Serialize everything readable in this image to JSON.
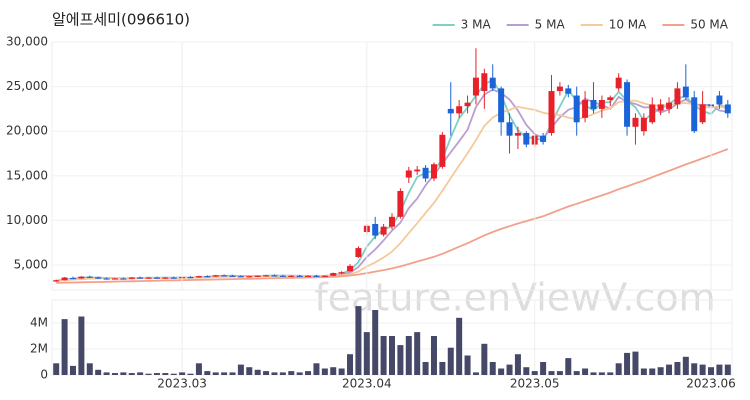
{
  "watermark": "feature.enViewV.com",
  "chart_data": [
    {
      "type": "candlestick",
      "title": "알에프세미(096610)",
      "up_color": "#e8202a",
      "down_color": "#1a63d8",
      "open": [
        3150,
        3300,
        3550,
        3500,
        3700,
        3600,
        3500,
        3450,
        3500,
        3450,
        3600,
        3550,
        3600,
        3550,
        3600,
        3550,
        3650,
        3600,
        3750,
        3700,
        3850,
        3800,
        3750,
        3700,
        3750,
        3800,
        3850,
        3800,
        3750,
        3800,
        3750,
        3800,
        3750,
        3800,
        4100,
        4300,
        5900,
        8700,
        9600,
        8400,
        9300,
        10400,
        14800,
        15500,
        15900,
        14700,
        16000,
        22500,
        22000,
        22800,
        24000,
        24500,
        26000,
        24800,
        21000,
        19500,
        19800,
        18500,
        19500,
        19800,
        24500,
        24800,
        24000,
        21500,
        23500,
        22500,
        23500,
        24800,
        25500,
        20500,
        20000,
        21000,
        22300,
        22500,
        23000,
        25000,
        23800,
        21000,
        23000,
        24000,
        23000
      ],
      "high": [
        3350,
        3650,
        3700,
        3750,
        3800,
        3700,
        3600,
        3550,
        3600,
        3650,
        3700,
        3650,
        3700,
        3650,
        3700,
        3700,
        3750,
        3800,
        3850,
        3900,
        3950,
        3900,
        3850,
        3800,
        3850,
        3900,
        3950,
        3900,
        3850,
        3900,
        3850,
        3900,
        3850,
        4150,
        4300,
        5100,
        7100,
        9600,
        10400,
        9600,
        10800,
        13600,
        16000,
        16100,
        16200,
        16500,
        19900,
        25500,
        23500,
        24000,
        29300,
        27000,
        27500,
        25000,
        22000,
        20500,
        20000,
        19800,
        19800,
        26300,
        25500,
        25200,
        25000,
        24500,
        25500,
        24000,
        24000,
        26500,
        25800,
        22000,
        22000,
        23800,
        23600,
        23800,
        25500,
        27500,
        24500,
        24500,
        24000,
        24500,
        23500
      ],
      "low": [
        3100,
        3280,
        3450,
        3450,
        3550,
        3450,
        3400,
        3380,
        3400,
        3420,
        3500,
        3480,
        3520,
        3480,
        3520,
        3500,
        3580,
        3580,
        3650,
        3680,
        3750,
        3700,
        3650,
        3620,
        3680,
        3700,
        3750,
        3700,
        3680,
        3720,
        3700,
        3700,
        3680,
        3750,
        3950,
        4250,
        5800,
        8400,
        7900,
        8200,
        9000,
        10200,
        14200,
        15100,
        14300,
        14400,
        15800,
        19500,
        21500,
        22000,
        23000,
        22500,
        24500,
        19500,
        17500,
        18000,
        18200,
        18200,
        18500,
        19500,
        24000,
        23800,
        19500,
        21000,
        22000,
        21500,
        22800,
        24500,
        19500,
        18500,
        19500,
        20800,
        21800,
        22000,
        22500,
        23500,
        19800,
        20800,
        22000,
        22500,
        21500
      ],
      "close": [
        3300,
        3600,
        3500,
        3700,
        3600,
        3500,
        3450,
        3500,
        3450,
        3600,
        3550,
        3600,
        3550,
        3600,
        3550,
        3650,
        3600,
        3750,
        3700,
        3850,
        3800,
        3750,
        3700,
        3750,
        3800,
        3850,
        3800,
        3750,
        3800,
        3750,
        3800,
        3750,
        3800,
        4100,
        4200,
        4900,
        6900,
        9400,
        8300,
        9300,
        10400,
        13300,
        15600,
        15700,
        14700,
        16300,
        19600,
        22000,
        22800,
        23200,
        26000,
        26500,
        24800,
        21000,
        19500,
        19800,
        18500,
        19500,
        18800,
        24500,
        25000,
        24200,
        21000,
        23500,
        22500,
        23500,
        23800,
        26000,
        20500,
        21500,
        21500,
        23000,
        23000,
        23200,
        24800,
        23800,
        20000,
        23000,
        22800,
        23000,
        22000
      ],
      "series": [
        {
          "name": "3 MA",
          "color": "#7ecfc4",
          "values": [
            3250,
            3400,
            3450,
            3600,
            3600,
            3600,
            3520,
            3480,
            3470,
            3520,
            3530,
            3580,
            3570,
            3580,
            3570,
            3600,
            3600,
            3670,
            3680,
            3770,
            3780,
            3800,
            3750,
            3730,
            3750,
            3800,
            3820,
            3800,
            3780,
            3770,
            3780,
            3770,
            3780,
            3880,
            4030,
            4400,
            5330,
            7070,
            8200,
            9000,
            9330,
            11000,
            13100,
            14870,
            15330,
            15570,
            16870,
            19300,
            21470,
            22670,
            24000,
            25230,
            25770,
            24100,
            21770,
            20100,
            19270,
            19270,
            18930,
            20930,
            22770,
            24570,
            23400,
            22900,
            22330,
            23170,
            23270,
            24430,
            23430,
            22670,
            21170,
            22000,
            22500,
            23070,
            23670,
            23930,
            22870,
            22270,
            21930,
            22930,
            22600
          ]
        },
        {
          "name": "5 MA",
          "color": "#b89fd0",
          "values": [
            3250,
            3350,
            3400,
            3500,
            3550,
            3580,
            3560,
            3550,
            3500,
            3500,
            3520,
            3540,
            3560,
            3570,
            3570,
            3590,
            3590,
            3630,
            3650,
            3710,
            3740,
            3770,
            3780,
            3770,
            3760,
            3770,
            3780,
            3790,
            3800,
            3790,
            3780,
            3780,
            3780,
            3840,
            3930,
            4150,
            4780,
            5900,
            6740,
            7760,
            8860,
            9740,
            11380,
            12460,
            13940,
            15120,
            16380,
            17660,
            18880,
            20180,
            22720,
            24100,
            24660,
            24300,
            23560,
            22320,
            20720,
            19660,
            19220,
            20420,
            21560,
            22400,
            22700,
            23640,
            23240,
            22940,
            22500,
            23860,
            23260,
            23060,
            22660,
            22700,
            22100,
            22440,
            23100,
            23560,
            22960,
            22960,
            22920,
            22320,
            22160
          ]
        },
        {
          "name": "10 MA",
          "color": "#f5c99a",
          "values": [
            3250,
            3300,
            3370,
            3420,
            3470,
            3500,
            3520,
            3520,
            3520,
            3530,
            3540,
            3550,
            3550,
            3550,
            3560,
            3570,
            3580,
            3600,
            3620,
            3650,
            3680,
            3700,
            3720,
            3730,
            3750,
            3760,
            3770,
            3780,
            3780,
            3780,
            3780,
            3780,
            3780,
            3810,
            3850,
            3960,
            4270,
            4850,
            5290,
            5840,
            6500,
            7450,
            8580,
            9690,
            10840,
            11980,
            13320,
            14760,
            16170,
            17540,
            19020,
            20580,
            21530,
            22090,
            22390,
            22740,
            22560,
            22390,
            22070,
            21880,
            21820,
            21520,
            21350,
            21560,
            21940,
            22310,
            22570,
            23260,
            23360,
            23440,
            23120,
            22870,
            22910,
            22940,
            23130,
            23160,
            23010,
            22730,
            22660,
            22800,
            22520
          ]
        },
        {
          "name": "50 MA",
          "color": "#f4a08a",
          "values": [
            3000,
            3020,
            3040,
            3060,
            3080,
            3100,
            3120,
            3140,
            3160,
            3180,
            3200,
            3220,
            3240,
            3260,
            3280,
            3300,
            3320,
            3340,
            3360,
            3380,
            3400,
            3420,
            3440,
            3460,
            3480,
            3500,
            3520,
            3540,
            3560,
            3580,
            3600,
            3620,
            3640,
            3680,
            3740,
            3820,
            3940,
            4100,
            4260,
            4430,
            4620,
            4840,
            5110,
            5390,
            5640,
            5920,
            6260,
            6650,
            7050,
            7450,
            7880,
            8320,
            8700,
            9050,
            9350,
            9650,
            9920,
            10200,
            10460,
            10830,
            11200,
            11560,
            11860,
            12180,
            12500,
            12800,
            13130,
            13500,
            13810,
            14160,
            14480,
            14840,
            15200,
            15550,
            15920,
            16280,
            16600,
            16950,
            17300,
            17650,
            18000
          ]
        }
      ],
      "xlim": [
        -0.5,
        80.5
      ],
      "ylim": [
        2200,
        30000
      ],
      "yticks": [
        {
          "value": 5000,
          "label": "5,000"
        },
        {
          "value": 10000,
          "label": "10,000"
        },
        {
          "value": 15000,
          "label": "15,000"
        },
        {
          "value": 20000,
          "label": "20,000"
        },
        {
          "value": 25000,
          "label": "25,000"
        },
        {
          "value": 30000,
          "label": "30,000"
        }
      ],
      "legend": "top-right"
    },
    {
      "type": "bar",
      "color": "#464868",
      "values": [
        900000,
        4300000,
        700000,
        4500000,
        900000,
        400000,
        200000,
        150000,
        200000,
        150000,
        200000,
        100000,
        150000,
        150000,
        100000,
        200000,
        100000,
        900000,
        300000,
        200000,
        200000,
        200000,
        800000,
        600000,
        400000,
        300000,
        200000,
        200000,
        300000,
        200000,
        300000,
        900000,
        500000,
        600000,
        500000,
        1600000,
        5300000,
        3300000,
        5000000,
        3000000,
        3000000,
        2300000,
        3000000,
        3300000,
        1000000,
        3000000,
        1000000,
        2100000,
        4400000,
        1500000,
        200000,
        2400000,
        1000000,
        500000,
        800000,
        1600000,
        600000,
        300000,
        1000000,
        300000,
        300000,
        1300000,
        300000,
        500000,
        200000,
        200000,
        200000,
        900000,
        1700000,
        1800000,
        500000,
        500000,
        600000,
        800000,
        1000000,
        1400000,
        900000,
        800000,
        600000,
        800000,
        800000
      ],
      "xlim": [
        -0.5,
        80.5
      ],
      "ylim": [
        0,
        5770000
      ],
      "yticks": [
        0,
        {
          "value": 2000000,
          "label": "2M"
        },
        {
          "value": 4000000,
          "label": "4M"
        }
      ],
      "xticks": [
        {
          "value": 15,
          "label": "2023.03"
        },
        {
          "value": 37,
          "label": "2023.04"
        },
        {
          "value": 57,
          "label": "2023.05"
        },
        {
          "value": 78,
          "label": "2023.06"
        }
      ],
      "grid": true
    }
  ]
}
